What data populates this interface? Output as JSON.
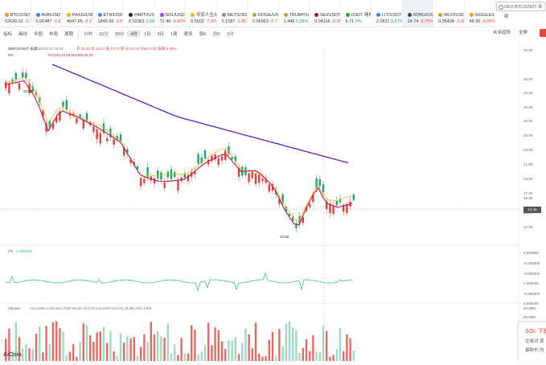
{
  "tickers": [
    {
      "name": "BTC/USDT",
      "price": "62630.01",
      "change": "-0.1",
      "dir": "dn",
      "dot": "#f7931a"
    },
    {
      "name": "AVA/USDT",
      "price": "0.06487",
      "change": "-0.8",
      "dir": "dn",
      "dot": "#3b82f6"
    },
    {
      "name": "PAXG/USDT",
      "price": "4047.65",
      "change": "-0.21",
      "dir": "dn",
      "dot": "#e6b800"
    },
    {
      "name": "ETH/USDT",
      "price": "1845.99",
      "change": "-0.81",
      "dir": "dn",
      "dot": "#627eea"
    },
    {
      "name": "PARTI/USDT",
      "price": "0.02361",
      "change": "0.08%",
      "dir": "up",
      "dot": "#222222"
    },
    {
      "name": "SOL/USDT",
      "price": "72.46",
      "change": "-0.60%",
      "dir": "dn",
      "dot": "#9945ff"
    },
    {
      "name": "币安人生/USDT",
      "price": "0.5502",
      "change": "-7.90%",
      "dir": "dn",
      "dot": "#f0b90b"
    },
    {
      "name": "MET/USDT",
      "price": "0.1587",
      "change": "-1.861",
      "dir": "dn",
      "dot": "#888888"
    },
    {
      "name": "DOGE/USDT",
      "price": "0.06953",
      "change": "-0.7",
      "dir": "dn",
      "dot": "#c2a633"
    },
    {
      "name": "TRUMP/USDT",
      "price": "1.449",
      "change": "0.28%",
      "dir": "up",
      "dot": "#d4a017"
    },
    {
      "name": "SEI/USDT",
      "price": "0.04118",
      "change": "-0.35",
      "dir": "dn",
      "dot": "#9b1c2e"
    },
    {
      "name": "USDT 场外-OKX",
      "price": "6.71",
      "change": "0%",
      "dir": "up",
      "dot": "#2ea043"
    },
    {
      "name": "LIT/USDT",
      "price": "2.0811",
      "change": "0.87%",
      "dir": "up",
      "dot": "#3b82f6"
    },
    {
      "name": "XDRU/USDT永续",
      "price": "14.74",
      "change": "-5.75%",
      "dir": "dn",
      "dot": "#444444",
      "active": true
    },
    {
      "name": "WLFI/USDT",
      "price": "0.05438",
      "change": "-3.05",
      "dir": "dn",
      "dot": "#d4a017"
    },
    {
      "name": "GIGGLE/US",
      "price": "46.30",
      "change": "-0.05%",
      "dir": "dn",
      "dot": "#f59e0b"
    }
  ],
  "search": {
    "placeholder": "OKX BTC/USDT 永续"
  },
  "toolbar": {
    "items": [
      "指标",
      "画线",
      "多图",
      "布局",
      "周期",
      "分时",
      "15分",
      "30分",
      "4时",
      "1日",
      "3日",
      "1周",
      "更多",
      "周K",
      "月K",
      "3分"
    ],
    "selected": "4时",
    "right": [
      "未来趋势",
      "全屏"
    ]
  },
  "chart": {
    "symbol_line": "XDRU/USDT 永续",
    "date_line": "2026-03-31 04:00",
    "ohlc_line": "开 15.15  高 15.21  低 14.71  收 15.03  -0.73%(-0.11)  振幅 3.39%",
    "ma_line": "MA(20):14.93   MA(99):18.22",
    "ma_label": "MA",
    "high_label": "33.65",
    "low_label": "10.55",
    "last_price": "14.46",
    "y_axis": [
      "38.00",
      "35.00",
      "33.00",
      "30.00",
      "28.00",
      "25.00",
      "23.00",
      "21.00",
      "19.00",
      "17.00",
      "16.00",
      "14.00",
      "12.00"
    ],
    "fr_label": "FR",
    "fr_value": "1.00000%",
    "fr_axis": [
      "0.000000",
      "-0.000600",
      "-0.000000",
      "0.000000",
      "-0.000000",
      "0.000000"
    ],
    "vol_label": "Volume",
    "vol_line": "VOLUME 2,693,651.7000  MA(5) 15,278,314.3400  MA(10) 16,381,951.1200",
    "vol_axis": [
      "80.00M",
      "60.00M",
      "40.00M",
      "20.00M"
    ]
  },
  "popup": {
    "title": "SOL 下跌",
    "rows": [
      "交易对",
      "最新价"
    ],
    "row_values": [
      "资",
      "均"
    ]
  },
  "logo": "AiCoin",
  "colors": {
    "up": "#1aa574",
    "down": "#e2403a",
    "ma_short": "#f0c419",
    "ma_mid": "#c2185b",
    "ma_long": "#5b21b6",
    "fr": "#2bb39a"
  }
}
